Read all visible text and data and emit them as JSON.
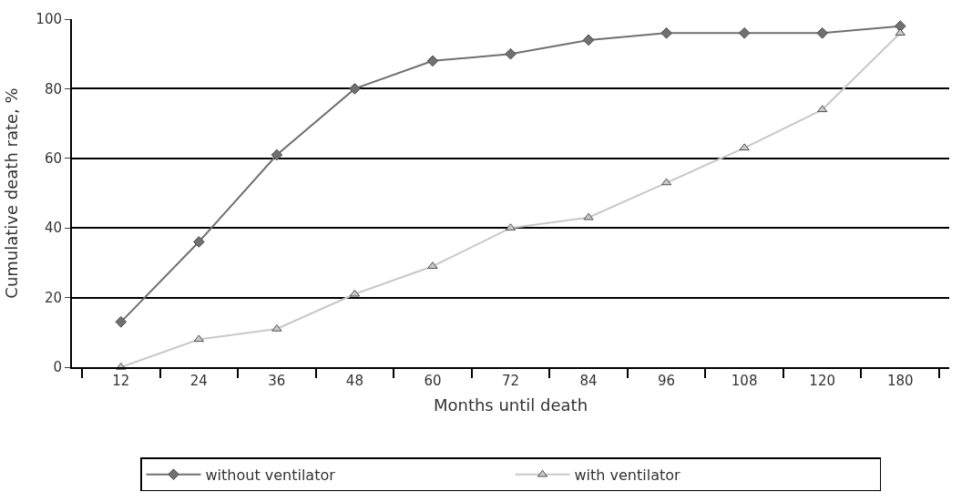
{
  "chart_data": {
    "type": "line",
    "xlabel": "Months until death",
    "ylabel": "Cumulative death rate, %",
    "categories": [
      "12",
      "24",
      "36",
      "48",
      "60",
      "72",
      "84",
      "96",
      "108",
      "120",
      "180"
    ],
    "series": [
      {
        "name": "without ventilator",
        "color": "#707070",
        "marker": "diamond",
        "values": [
          13,
          36,
          61,
          80,
          88,
          90,
          94,
          96,
          96,
          96,
          98
        ]
      },
      {
        "name": "with ventilator",
        "color": "#c8c8c8",
        "marker": "triangle",
        "values": [
          0,
          8,
          11,
          21,
          29,
          40,
          43,
          53,
          63,
          74,
          96
        ]
      }
    ],
    "ylim": [
      0,
      100
    ],
    "yticks": [
      0,
      20,
      40,
      60,
      80,
      100
    ],
    "grid": "y",
    "legend": "bottom",
    "line_style": "solid"
  }
}
